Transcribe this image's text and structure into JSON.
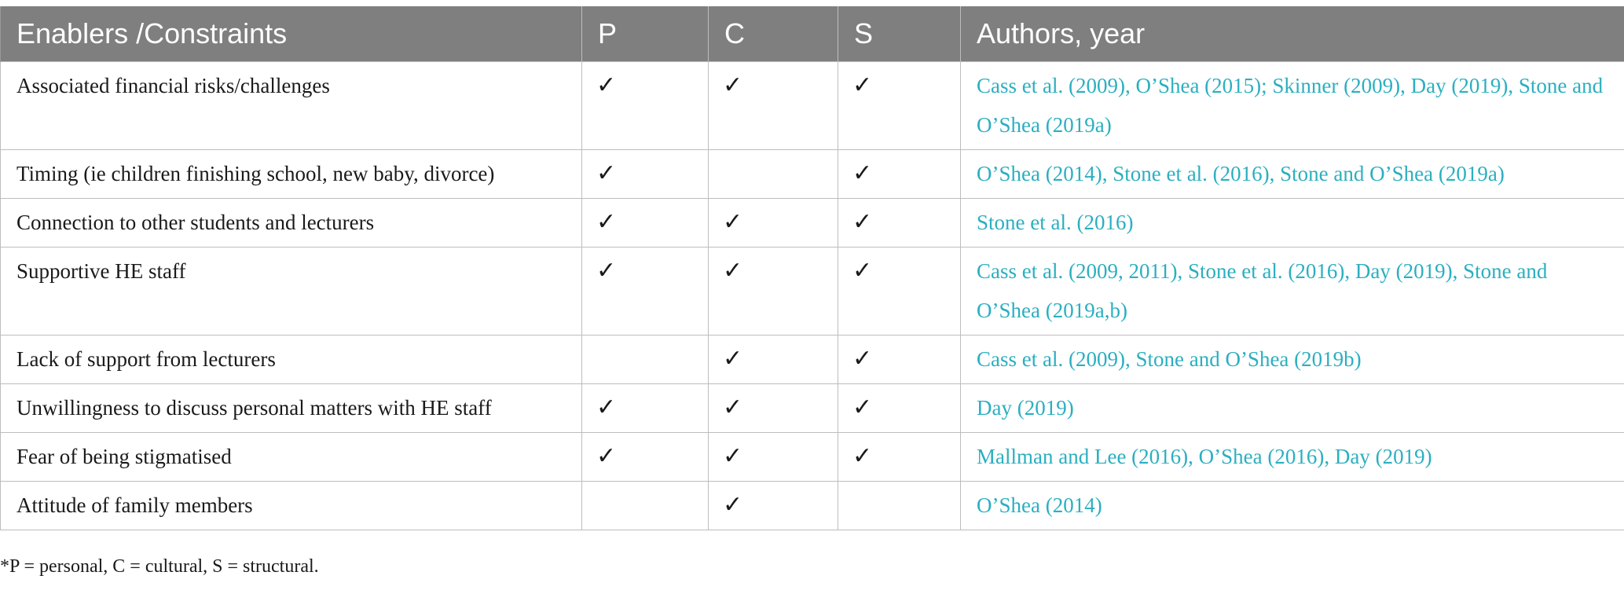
{
  "header": {
    "enablers": "Enablers /Constraints",
    "p": "P",
    "c": "C",
    "s": "S",
    "authors": "Authors, year"
  },
  "rows": [
    {
      "enabler": "Associated financial risks/challenges",
      "p": "✓",
      "c": "✓",
      "s": "✓",
      "authors": "Cass et al. (2009), O’Shea (2015); Skinner (2009), Day (2019), Stone and O’Shea (2019a)"
    },
    {
      "enabler": "Timing (ie children finishing school, new baby, divorce)",
      "p": "✓",
      "c": "",
      "s": "✓",
      "authors": "O’Shea (2014), Stone et al. (2016), Stone and O’Shea (2019a)"
    },
    {
      "enabler": "Connection to other students and lecturers",
      "p": "✓",
      "c": "✓",
      "s": "✓",
      "authors": "Stone et al. (2016)"
    },
    {
      "enabler": "Supportive HE staff",
      "p": "✓",
      "c": "✓",
      "s": "✓",
      "authors": "Cass et al. (2009, 2011), Stone et al. (2016), Day (2019), Stone and O’Shea (2019a,b)"
    },
    {
      "enabler": "Lack of support from lecturers",
      "p": "",
      "c": "✓",
      "s": "✓",
      "authors": "Cass et al. (2009), Stone and O’Shea (2019b)"
    },
    {
      "enabler": "Unwillingness to discuss personal matters with HE staff",
      "p": "✓",
      "c": "✓",
      "s": "✓",
      "authors": "Day (2019)"
    },
    {
      "enabler": "Fear of being stigmatised",
      "p": "✓",
      "c": "✓",
      "s": "✓",
      "authors": "Mallman and Lee (2016), O’Shea (2016), Day (2019)"
    },
    {
      "enabler": "Attitude of family members",
      "p": "",
      "c": "✓",
      "s": "",
      "authors": "O’Shea (2014)"
    }
  ],
  "footnote": "*P = personal, C = cultural, S = structural.",
  "colors": {
    "header_bg": "#7f7f7f",
    "header_text": "#ffffff",
    "link": "#2bafc0",
    "border": "#bdbdbd"
  }
}
